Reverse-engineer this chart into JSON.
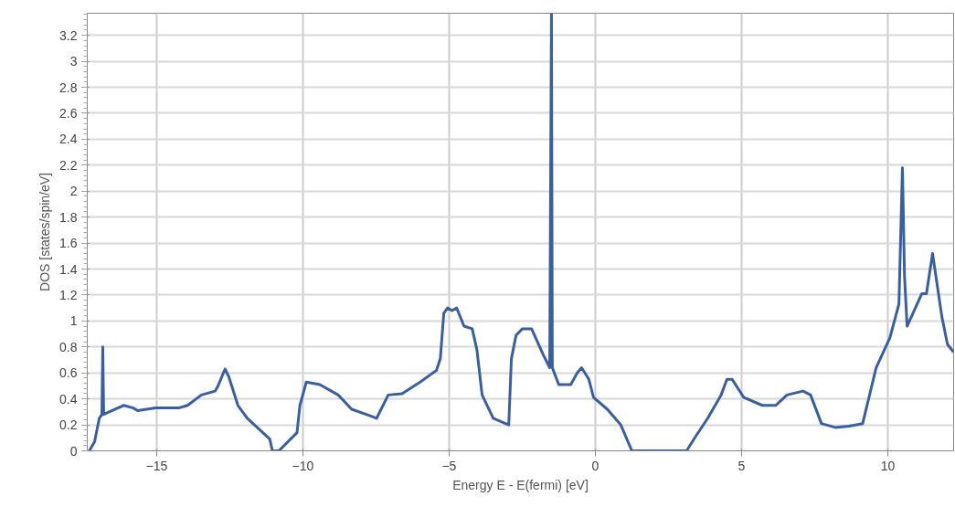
{
  "chart_data": {
    "type": "line",
    "xlabel": "Energy E - E(fermi) [eV]",
    "ylabel": "DOS [states/spin/eV]",
    "xlim": [
      -17.37,
      12.25
    ],
    "ylim": [
      0,
      3.37
    ],
    "xticks": [
      -15,
      -10,
      -5,
      0,
      5,
      10
    ],
    "yticks": [
      0,
      0.2,
      0.4,
      0.6,
      0.8,
      1,
      1.2,
      1.4,
      1.6,
      1.8,
      2,
      2.2,
      2.4,
      2.6,
      2.8,
      3,
      3.2
    ],
    "grid": true,
    "line_style": "solid",
    "marker": "none",
    "series": [
      {
        "color": "#3a5fa0",
        "x": [
          -17.3,
          -17.12,
          -16.96,
          -16.87,
          -16.84,
          -16.81,
          -16.43,
          -16.12,
          -15.8,
          -15.65,
          -15.03,
          -14.25,
          -13.94,
          -13.47,
          -13.0,
          -12.9,
          -12.66,
          -12.53,
          -12.22,
          -11.9,
          -11.13,
          -11.04,
          -10.82,
          -10.2,
          -10.1,
          -9.88,
          -9.42,
          -8.79,
          -8.33,
          -7.7,
          -7.48,
          -7.08,
          -6.61,
          -5.99,
          -5.43,
          -5.3,
          -5.18,
          -5.05,
          -4.9,
          -4.74,
          -4.49,
          -4.21,
          -4.05,
          -3.87,
          -3.49,
          -2.96,
          -2.87,
          -2.71,
          -2.49,
          -2.18,
          -1.78,
          -1.56,
          -1.5,
          -1.47,
          -1.25,
          -0.84,
          -0.62,
          -0.47,
          -0.22,
          -0.06,
          0.41,
          0.87,
          1.25,
          3.12,
          3.37,
          3.84,
          4.3,
          4.5,
          4.68,
          5.08,
          5.71,
          6.17,
          6.55,
          7.1,
          7.36,
          7.73,
          8.2,
          8.67,
          9.14,
          9.6,
          10.07,
          10.38,
          10.5,
          10.57,
          10.66,
          11.16,
          11.32,
          11.53,
          11.85,
          12.04,
          12.25
        ],
        "values": [
          0,
          0.07,
          0.25,
          0.28,
          0.8,
          0.28,
          0.32,
          0.35,
          0.33,
          0.31,
          0.33,
          0.33,
          0.35,
          0.43,
          0.46,
          0.5,
          0.63,
          0.57,
          0.35,
          0.25,
          0.09,
          0,
          0,
          0.14,
          0.35,
          0.53,
          0.51,
          0.43,
          0.32,
          0.27,
          0.25,
          0.43,
          0.44,
          0.53,
          0.62,
          0.71,
          1.06,
          1.1,
          1.08,
          1.1,
          0.96,
          0.94,
          0.78,
          0.43,
          0.25,
          0.2,
          0.71,
          0.89,
          0.94,
          0.94,
          0.74,
          0.64,
          3.37,
          0.64,
          0.51,
          0.51,
          0.6,
          0.64,
          0.55,
          0.41,
          0.32,
          0.2,
          0,
          0,
          0.09,
          0.25,
          0.43,
          0.55,
          0.55,
          0.41,
          0.35,
          0.35,
          0.43,
          0.46,
          0.43,
          0.21,
          0.18,
          0.19,
          0.21,
          0.64,
          0.87,
          1.13,
          2.18,
          1.35,
          0.96,
          1.21,
          1.21,
          1.52,
          1.03,
          0.82,
          0.76
        ]
      }
    ]
  }
}
